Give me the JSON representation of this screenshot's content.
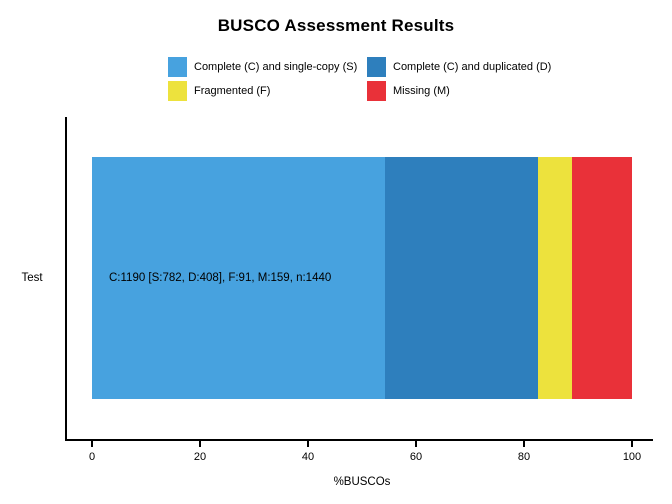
{
  "page": {
    "background": "#ffffff",
    "text_color": "#000000",
    "axis_color": "#000000"
  },
  "chart_data": {
    "type": "bar",
    "orientation": "horizontal",
    "stacked": true,
    "title": "BUSCO Assessment Results",
    "xlabel": "%BUSCOs",
    "xlim": [
      0,
      100
    ],
    "x_ticks": [
      0,
      20,
      40,
      60,
      80,
      100
    ],
    "grid": false,
    "legend_position": "top",
    "categories": [
      "Test"
    ],
    "series": [
      {
        "name": "Complete (C) and single-copy (S)",
        "color": "#47A2DF",
        "count": 782,
        "values": [
          54.31
        ]
      },
      {
        "name": "Complete (C) and duplicated (D)",
        "color": "#2E7FBD",
        "count": 408,
        "values": [
          28.33
        ]
      },
      {
        "name": "Fragmented (F)",
        "color": "#EDE23D",
        "count": 91,
        "values": [
          6.32
        ]
      },
      {
        "name": "Missing (M)",
        "color": "#E93139",
        "count": 159,
        "values": [
          11.04
        ]
      }
    ],
    "bar_labels": [
      "C:1190 [S:782, D:408], F:91, M:159, n:1440"
    ],
    "totals": {
      "C": 1190,
      "S": 782,
      "D": 408,
      "F": 91,
      "M": 159,
      "n": 1440
    }
  }
}
